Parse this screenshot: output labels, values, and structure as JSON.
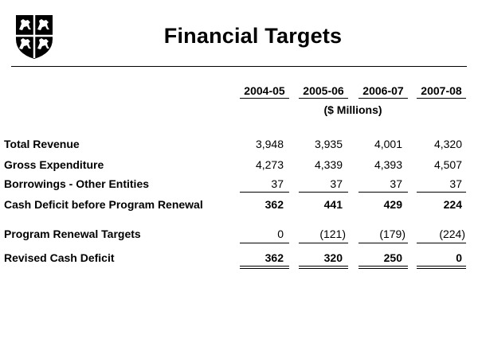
{
  "title": "Financial Targets",
  "units": "($ Millions)",
  "columns": [
    "2004-05",
    "2005-06",
    "2006-07",
    "2007-08"
  ],
  "rows": [
    {
      "label": "Total Revenue",
      "values": [
        "3,948",
        "3,935",
        "4,001",
        "4,320"
      ]
    },
    {
      "label": "Gross Expenditure",
      "values": [
        "4,273",
        "4,339",
        "4,393",
        "4,507"
      ]
    },
    {
      "label": "Borrowings - Other Entities",
      "values": [
        "37",
        "37",
        "37",
        "37"
      ]
    },
    {
      "label": "Cash Deficit before Program Renewal",
      "values": [
        "362",
        "441",
        "429",
        "224"
      ]
    },
    {
      "label": "Program Renewal Targets",
      "values": [
        "0",
        "(121)",
        "(179)",
        "(224)"
      ]
    },
    {
      "label": "Revised Cash Deficit",
      "values": [
        "362",
        "320",
        "250",
        "0"
      ]
    }
  ]
}
